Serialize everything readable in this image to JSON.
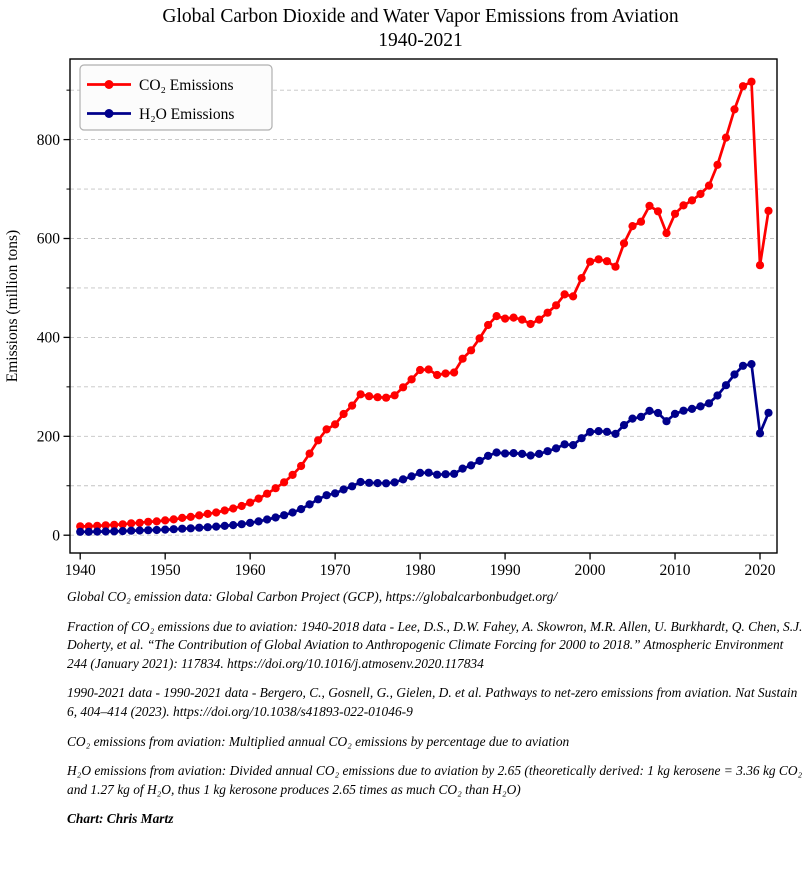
{
  "title": {
    "line1": "Global Carbon Dioxide and Water Vapor Emissions from Aviation",
    "line2": "1940-2021"
  },
  "chart_data": {
    "type": "line",
    "title": "Global Carbon Dioxide and Water Vapor Emissions from Aviation 1940-2021",
    "xlabel": "",
    "ylabel": "Emissions (million tons)",
    "x": [
      1940,
      1941,
      1942,
      1943,
      1944,
      1945,
      1946,
      1947,
      1948,
      1949,
      1950,
      1951,
      1952,
      1953,
      1954,
      1955,
      1956,
      1957,
      1958,
      1959,
      1960,
      1961,
      1962,
      1963,
      1964,
      1965,
      1966,
      1967,
      1968,
      1969,
      1970,
      1971,
      1972,
      1973,
      1974,
      1975,
      1976,
      1977,
      1978,
      1979,
      1980,
      1981,
      1982,
      1983,
      1984,
      1985,
      1986,
      1987,
      1988,
      1989,
      1990,
      1991,
      1992,
      1993,
      1994,
      1995,
      1996,
      1997,
      1998,
      1999,
      2000,
      2001,
      2002,
      2003,
      2004,
      2005,
      2006,
      2007,
      2008,
      2009,
      2010,
      2011,
      2012,
      2013,
      2014,
      2015,
      2016,
      2017,
      2018,
      2019,
      2020,
      2021
    ],
    "series": [
      {
        "name": "CO₂ Emissions",
        "color": "#ff0000",
        "values": [
          18,
          18,
          19,
          20,
          21,
          22,
          24,
          25,
          27,
          28,
          30,
          32,
          35,
          37,
          40,
          43,
          46,
          50,
          54,
          59,
          66,
          74,
          84,
          95,
          107,
          122,
          140,
          165,
          192,
          214,
          224,
          245,
          262,
          285,
          281,
          279,
          278,
          283,
          299,
          315,
          334,
          335,
          324,
          327,
          329,
          357,
          374,
          398,
          425,
          443,
          438,
          440,
          436,
          427,
          436,
          450,
          465,
          487,
          483,
          520,
          553,
          558,
          554,
          543,
          590,
          625,
          634,
          666,
          655,
          611,
          650,
          667,
          677,
          690,
          707,
          749,
          804,
          861,
          908,
          917,
          546,
          656
        ]
      },
      {
        "name": "H₂O Emissions",
        "color": "#00008b",
        "values": [
          6.8,
          6.8,
          7.2,
          7.5,
          7.9,
          8.3,
          9.1,
          9.4,
          10.2,
          10.6,
          11.3,
          12.1,
          13.2,
          14.0,
          15.1,
          16.2,
          17.4,
          18.9,
          20.4,
          22.3,
          24.9,
          27.9,
          31.7,
          35.8,
          40.4,
          46.0,
          52.8,
          62.3,
          72.5,
          80.8,
          84.5,
          92.5,
          98.9,
          107.5,
          106.0,
          105.3,
          104.9,
          106.8,
          112.8,
          118.9,
          126.0,
          126.4,
          122.3,
          123.4,
          124.2,
          134.7,
          141.1,
          150.2,
          160.4,
          167.2,
          165.3,
          166.0,
          164.5,
          161.1,
          164.5,
          169.8,
          175.5,
          183.8,
          182.3,
          196.2,
          208.7,
          210.6,
          209.1,
          204.9,
          222.6,
          235.8,
          239.2,
          251.3,
          247.2,
          230.6,
          245.3,
          251.7,
          255.5,
          260.4,
          266.8,
          282.6,
          303.4,
          324.9,
          342.6,
          346.0,
          206.0,
          247.5
        ]
      }
    ],
    "xticks": [
      1940,
      1950,
      1960,
      1970,
      1980,
      1990,
      2000,
      2010,
      2020
    ],
    "yticks_labeled": [
      0,
      200,
      400,
      600,
      800
    ],
    "yticks_minor": [
      100,
      300,
      500,
      700,
      900
    ],
    "gridlines_y": [
      0,
      100,
      200,
      300,
      400,
      500,
      600,
      700,
      800,
      900
    ],
    "xlim": [
      1938.8,
      2022.0
    ],
    "ylim": [
      -36,
      963
    ],
    "grid": "horizontal-dashed",
    "legend_position": "upper-left",
    "colors": {
      "grid": "#c3c3c3",
      "spine": "#000000",
      "legend_bg": "#fcfcfc",
      "legend_border": "#b0b0b0"
    }
  },
  "footnotes": [
    "Global CO₂ emission data: Global Carbon Project (GCP), https://globalcarbonbudget.org/",
    "Fraction of CO₂ emissions due to aviation: 1940-2018 data - Lee, D.S., D.W. Fahey, A. Skowron, M.R. Allen, U. Burkhardt, Q. Chen, S.J. Doherty, et al. “The Contribution of Global Aviation to Anthropogenic Climate Forcing for 2000 to 2018.” Atmospheric Environment 244 (January 2021): 117834. https://doi.org/10.1016/j.atmosenv.2020.117834",
    "1990-2021 data - 1990-2021 data - Bergero, C., Gosnell, G., Gielen, D. et al. Pathways to net-zero emissions from aviation. Nat Sustain 6, 404–414 (2023). https://doi.org/10.1038/s41893-022-01046-9",
    "CO₂ emissions from aviation: Multiplied annual CO₂ emissions by percentage due to aviation",
    "H₂O emissions from aviation: Divided annual CO₂ emissions due to aviation by 2.65 (theoretically derived: 1 kg kerosene = 3.36 kg CO₂ and 1.27 kg of H₂O, thus 1 kg kerosone produces 2.65 times as much CO₂ than H₂O)",
    "Chart: Chris Martz"
  ]
}
